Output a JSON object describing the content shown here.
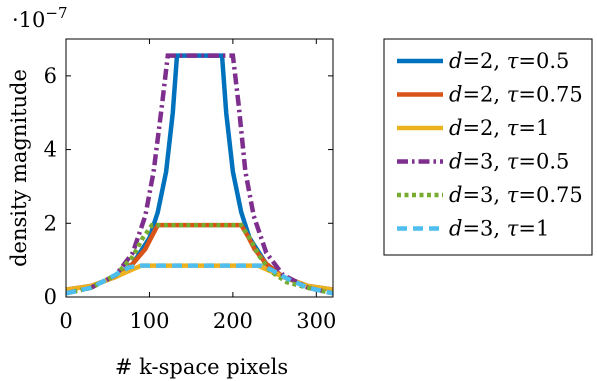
{
  "chart_data": {
    "type": "line",
    "xlabel": "# k-space pixels",
    "ylabel": "density magnitude",
    "y_multiplier_label": {
      "base": "·10",
      "exponent": "−7"
    },
    "xlim": [
      0,
      320
    ],
    "ylim": [
      0,
      7
    ],
    "xticks": [
      0,
      100,
      200,
      300
    ],
    "yticks": [
      0,
      2,
      4,
      6
    ],
    "grid": false,
    "legend_position": "outside-right",
    "series": [
      {
        "name_parts": {
          "var": "d",
          "dval": "2",
          "sep": ", ",
          "tau": "τ",
          "tval": "0.5"
        },
        "color": "#0072BD",
        "dash": "solid",
        "width": 4.5,
        "x": [
          0,
          30,
          60,
          80,
          100,
          110,
          120,
          128,
          133,
          187,
          192,
          200,
          210,
          220,
          240,
          260,
          290,
          320
        ],
        "y": [
          0.2,
          0.3,
          0.55,
          0.9,
          1.6,
          2.3,
          3.4,
          5.0,
          6.55,
          6.55,
          5.0,
          3.4,
          2.3,
          1.6,
          0.9,
          0.55,
          0.3,
          0.2
        ]
      },
      {
        "name_parts": {
          "var": "d",
          "dval": "2",
          "sep": ", ",
          "tau": "τ",
          "tval": "0.75"
        },
        "color": "#D95319",
        "dash": "solid",
        "width": 4.5,
        "x": [
          0,
          30,
          60,
          80,
          95,
          103,
          110,
          210,
          218,
          226,
          240,
          260,
          290,
          320
        ],
        "y": [
          0.2,
          0.3,
          0.55,
          0.9,
          1.3,
          1.65,
          1.95,
          1.95,
          1.65,
          1.3,
          0.9,
          0.55,
          0.3,
          0.2
        ]
      },
      {
        "name_parts": {
          "var": "d",
          "dval": "2",
          "sep": ", ",
          "tau": "τ",
          "tval": "1"
        },
        "color": "#EDB120",
        "dash": "solid",
        "width": 4.5,
        "x": [
          0,
          30,
          60,
          80,
          90,
          230,
          240,
          260,
          290,
          320
        ],
        "y": [
          0.2,
          0.3,
          0.55,
          0.75,
          0.85,
          0.85,
          0.75,
          0.55,
          0.3,
          0.2
        ]
      },
      {
        "name_parts": {
          "var": "d",
          "dval": "3",
          "sep": ", ",
          "tau": "τ",
          "tval": "0.5"
        },
        "color": "#7E2F8E",
        "dash": "dashdot",
        "width": 4.5,
        "x": [
          0,
          30,
          60,
          80,
          95,
          105,
          115,
          122,
          200,
          207,
          215,
          225,
          240,
          260,
          290,
          320
        ],
        "y": [
          0.1,
          0.25,
          0.6,
          1.2,
          2.2,
          3.4,
          5.2,
          6.55,
          6.55,
          5.2,
          3.4,
          2.2,
          1.2,
          0.6,
          0.25,
          0.1
        ]
      },
      {
        "name_parts": {
          "var": "d",
          "dval": "3",
          "sep": ", ",
          "tau": "τ",
          "tval": "0.75"
        },
        "color": "#77AC30",
        "dash": "dotted",
        "width": 4.5,
        "x": [
          0,
          30,
          60,
          80,
          92,
          103,
          210,
          220,
          232,
          245,
          265,
          290,
          320
        ],
        "y": [
          0.1,
          0.25,
          0.6,
          1.1,
          1.6,
          1.95,
          1.95,
          1.6,
          1.1,
          0.7,
          0.4,
          0.25,
          0.1
        ]
      },
      {
        "name_parts": {
          "var": "d",
          "dval": "3",
          "sep": ", ",
          "tau": "τ",
          "tval": "1"
        },
        "color": "#4DBEEE",
        "dash": "dashed",
        "width": 4.5,
        "x": [
          0,
          30,
          55,
          75,
          85,
          233,
          245,
          265,
          290,
          320
        ],
        "y": [
          0.1,
          0.25,
          0.55,
          0.8,
          0.85,
          0.85,
          0.75,
          0.5,
          0.25,
          0.1
        ]
      }
    ]
  }
}
